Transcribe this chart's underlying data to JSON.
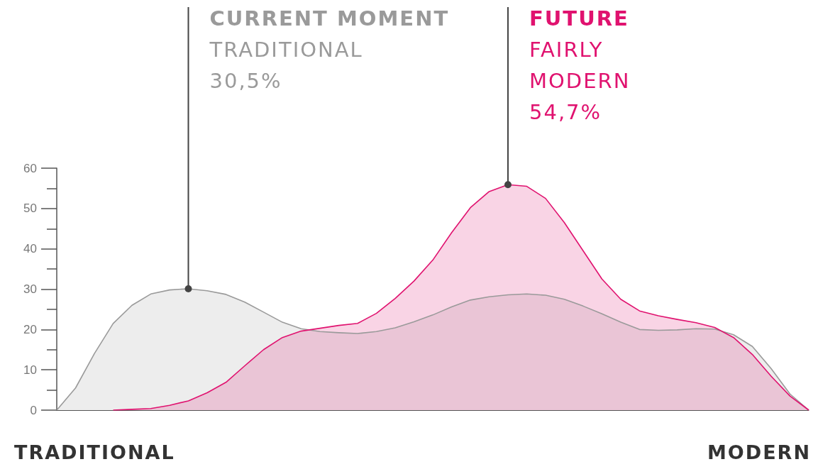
{
  "chart_data": {
    "type": "area",
    "categories": [
      null,
      null,
      null,
      null,
      null,
      null,
      null,
      null,
      null,
      null,
      null,
      null,
      null,
      null,
      null,
      null,
      null,
      null,
      null,
      null,
      null,
      null,
      null,
      null,
      null,
      null,
      null,
      null,
      null,
      null,
      null,
      null,
      null,
      null,
      null,
      null,
      null,
      null,
      null,
      null,
      null
    ],
    "ylim": [
      0,
      60
    ],
    "yticks": [
      0,
      {
        "value": 5,
        "label": null
      },
      10,
      {
        "value": 15,
        "label": null
      },
      20,
      {
        "value": 25,
        "label": null
      },
      30,
      {
        "value": 35,
        "label": null
      },
      40,
      {
        "value": 45,
        "label": null
      },
      50,
      {
        "value": 55,
        "label": null
      },
      60
    ],
    "tick_labels": "y",
    "grid": false,
    "marker": "none",
    "line_style": "solid",
    "series": [
      {
        "color": "#9a9a9a",
        "values": [
          0,
          5.5,
          14,
          21.5,
          26,
          28.8,
          29.8,
          30.1,
          29.6,
          28.7,
          26.8,
          24.3,
          21.8,
          20.2,
          19.5,
          19.2,
          19,
          19.5,
          20.4,
          21.9,
          23.6,
          25.6,
          27.3,
          28.1,
          28.6,
          28.8,
          28.5,
          27.5,
          25.8,
          23.9,
          21.8,
          20,
          19.8,
          19.9,
          20.2,
          20.1,
          18.7,
          15.8,
          10.3,
          4,
          0
        ]
      },
      {
        "color": "#e0126f",
        "values": [
          null,
          null,
          null,
          0,
          0.2,
          0.4,
          1.2,
          2.3,
          4.3,
          6.9,
          11,
          15,
          18,
          19.6,
          20.3,
          21,
          21.5,
          24,
          27.7,
          32,
          37.2,
          44,
          50.2,
          54.2,
          55.9,
          55.5,
          52.5,
          46.5,
          39.5,
          32.5,
          27.5,
          24.6,
          23.4,
          22.5,
          21.7,
          20.5,
          18,
          13.8,
          8.4,
          3.5,
          0
        ]
      }
    ],
    "annotations": [
      "CURRENT MOMENT\nTRADITIONAL\n30,5%",
      "FUTURE\nFAIRLY\nMODERN\n54,7%",
      "TRADITIONAL",
      "MODERN"
    ]
  }
}
